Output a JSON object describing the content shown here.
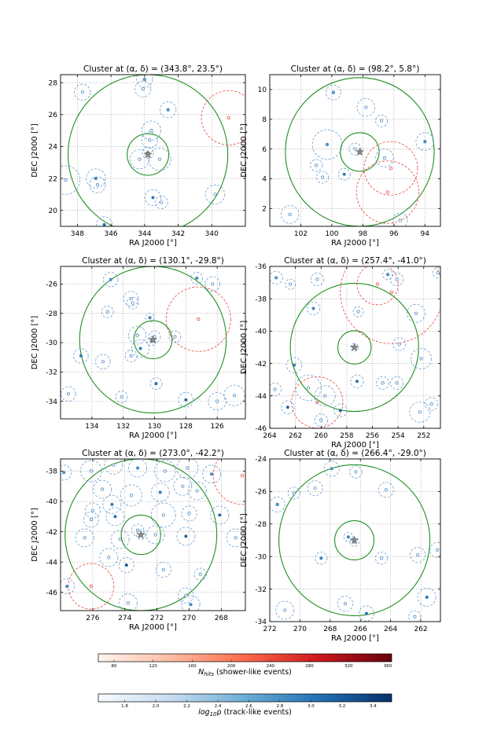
{
  "chart_data": [
    {
      "type": "scatter",
      "title": "Cluster at (α, δ) = (343.8°, 23.5°)",
      "xlabel": "RA J2000 [°]",
      "ylabel": "DEC J2000 [°]",
      "xlim": [
        349,
        338
      ],
      "ylim": [
        19,
        28.5
      ],
      "xticks": [
        "348",
        "346",
        "344",
        "342",
        "340"
      ],
      "yticks": [
        "20",
        "22",
        "24",
        "26",
        "28"
      ],
      "grid": true,
      "center": [
        343.8,
        23.5
      ],
      "green_circles": [
        {
          "x": 343.8,
          "y": 23.5,
          "r": 1.3
        },
        {
          "x": 343.8,
          "y": 23.5,
          "r": 5.0
        }
      ],
      "track_events": [
        {
          "x": 344.0,
          "y": 28.2,
          "r": 0.5
        },
        {
          "x": 344.1,
          "y": 27.6,
          "r": 0.5
        },
        {
          "x": 347.7,
          "y": 27.4,
          "r": 0.5
        },
        {
          "x": 342.6,
          "y": 26.3,
          "r": 0.5
        },
        {
          "x": 343.6,
          "y": 25.0,
          "r": 0.6
        },
        {
          "x": 343.7,
          "y": 24.4,
          "r": 0.5
        },
        {
          "x": 343.8,
          "y": 23.6,
          "r": 0.35
        },
        {
          "x": 344.3,
          "y": 23.2,
          "r": 0.6
        },
        {
          "x": 343.1,
          "y": 23.2,
          "r": 0.7
        },
        {
          "x": 346.9,
          "y": 22.0,
          "r": 0.6
        },
        {
          "x": 346.8,
          "y": 21.6,
          "r": 0.5
        },
        {
          "x": 348.7,
          "y": 21.9,
          "r": 0.9
        },
        {
          "x": 343.5,
          "y": 20.8,
          "r": 0.5
        },
        {
          "x": 343.0,
          "y": 20.5,
          "r": 0.4
        },
        {
          "x": 339.8,
          "y": 21.0,
          "r": 0.6
        },
        {
          "x": 346.4,
          "y": 19.1,
          "r": 0.5
        }
      ],
      "shower_events": [
        {
          "x": 339.0,
          "y": 25.8,
          "r": 1.7
        }
      ]
    },
    {
      "type": "scatter",
      "title": "Cluster at (α, δ) = (98.2°, 5.8°)",
      "xlabel": "RA J2000 [°]",
      "ylabel": "DEC J2000 [°]",
      "xlim": [
        104,
        93
      ],
      "ylim": [
        0.8,
        11
      ],
      "xticks": [
        "102",
        "100",
        "98",
        "96",
        "94"
      ],
      "yticks": [
        "2",
        "4",
        "6",
        "8",
        "10"
      ],
      "grid": true,
      "center": [
        98.2,
        5.8
      ],
      "green_circles": [
        {
          "x": 98.2,
          "y": 5.8,
          "r": 1.3
        },
        {
          "x": 98.2,
          "y": 5.8,
          "r": 5.0
        }
      ],
      "track_events": [
        {
          "x": 99.9,
          "y": 9.8,
          "r": 0.5
        },
        {
          "x": 97.8,
          "y": 8.8,
          "r": 0.6
        },
        {
          "x": 96.8,
          "y": 7.9,
          "r": 0.4
        },
        {
          "x": 100.3,
          "y": 6.3,
          "r": 1.0
        },
        {
          "x": 98.5,
          "y": 6.0,
          "r": 0.4
        },
        {
          "x": 96.6,
          "y": 5.4,
          "r": 0.6
        },
        {
          "x": 94.0,
          "y": 6.5,
          "r": 0.6
        },
        {
          "x": 101.0,
          "y": 4.9,
          "r": 0.4
        },
        {
          "x": 100.6,
          "y": 4.1,
          "r": 0.4
        },
        {
          "x": 99.2,
          "y": 4.3,
          "r": 0.4
        },
        {
          "x": 102.7,
          "y": 1.6,
          "r": 0.6
        },
        {
          "x": 95.6,
          "y": 1.2,
          "r": 0.5
        }
      ],
      "shower_events": [
        {
          "x": 96.2,
          "y": 4.7,
          "r": 1.8
        },
        {
          "x": 96.4,
          "y": 3.1,
          "r": 2.1
        }
      ]
    },
    {
      "type": "scatter",
      "title": "Cluster at (α, δ) = (130.1°, -29.8°)",
      "xlabel": "RA J2000 [°]",
      "ylabel": "DEC J2000 [°]",
      "xlim": [
        136,
        124.2
      ],
      "ylim": [
        -35.2,
        -24.8
      ],
      "xticks": [
        "134",
        "132",
        "130",
        "128",
        "126"
      ],
      "yticks": [
        "-26",
        "-28",
        "-30",
        "-32",
        "-34"
      ],
      "grid": true,
      "center": [
        130.1,
        -29.8
      ],
      "green_circles": [
        {
          "x": 130.1,
          "y": -29.8,
          "r": 1.3
        },
        {
          "x": 130.1,
          "y": -29.8,
          "r": 5.0
        }
      ],
      "track_events": [
        {
          "x": 132.8,
          "y": -25.7,
          "r": 0.5
        },
        {
          "x": 131.5,
          "y": -27.0,
          "r": 0.5
        },
        {
          "x": 131.4,
          "y": -27.3,
          "r": 0.4
        },
        {
          "x": 127.3,
          "y": -25.6,
          "r": 0.4
        },
        {
          "x": 126.3,
          "y": -26.0,
          "r": 0.5
        },
        {
          "x": 133.0,
          "y": -27.9,
          "r": 0.4
        },
        {
          "x": 130.3,
          "y": -28.3,
          "r": 0.3
        },
        {
          "x": 131.1,
          "y": -29.5,
          "r": 0.6
        },
        {
          "x": 130.2,
          "y": -29.9,
          "r": 0.3
        },
        {
          "x": 130.9,
          "y": -30.4,
          "r": 0.6
        },
        {
          "x": 130.0,
          "y": -29.6,
          "r": 0.4
        },
        {
          "x": 128.7,
          "y": -29.6,
          "r": 0.4
        },
        {
          "x": 134.7,
          "y": -30.9,
          "r": 0.5
        },
        {
          "x": 133.3,
          "y": -31.3,
          "r": 0.5
        },
        {
          "x": 131.5,
          "y": -30.9,
          "r": 0.4
        },
        {
          "x": 129.9,
          "y": -32.8,
          "r": 0.4
        },
        {
          "x": 135.5,
          "y": -33.5,
          "r": 0.5
        },
        {
          "x": 132.1,
          "y": -33.7,
          "r": 0.4
        },
        {
          "x": 128.0,
          "y": -33.9,
          "r": 0.5
        },
        {
          "x": 126.0,
          "y": -34.0,
          "r": 0.6
        },
        {
          "x": 124.9,
          "y": -33.6,
          "r": 0.7
        }
      ],
      "shower_events": [
        {
          "x": 127.2,
          "y": -28.4,
          "r": 2.2
        }
      ]
    },
    {
      "type": "scatter",
      "title": "Cluster at (α, δ) = (257.4°, -41.0°)",
      "xlabel": "RA J2000 [°]",
      "ylabel": "DEC J2000 [°]",
      "xlim": [
        264,
        250.7
      ],
      "ylim": [
        -46,
        -36
      ],
      "xticks": [
        "264",
        "262",
        "260",
        "258",
        "256",
        "254",
        "252"
      ],
      "yticks": [
        "-36",
        "-38",
        "-40",
        "-42",
        "-44",
        "-46"
      ],
      "grid": true,
      "center": [
        257.4,
        -41.0
      ],
      "green_circles": [
        {
          "x": 257.4,
          "y": -41.0,
          "r": 1.3
        },
        {
          "x": 257.4,
          "y": -41.0,
          "r": 5.0
        }
      ],
      "track_events": [
        {
          "x": 263.5,
          "y": -36.7,
          "r": 0.5
        },
        {
          "x": 262.4,
          "y": -37.1,
          "r": 0.4
        },
        {
          "x": 260.3,
          "y": -36.8,
          "r": 0.5
        },
        {
          "x": 254.8,
          "y": -36.5,
          "r": 0.4
        },
        {
          "x": 254.1,
          "y": -36.8,
          "r": 0.5
        },
        {
          "x": 250.9,
          "y": -36.4,
          "r": 0.4
        },
        {
          "x": 260.6,
          "y": -38.6,
          "r": 0.5
        },
        {
          "x": 257.1,
          "y": -38.8,
          "r": 0.4
        },
        {
          "x": 252.6,
          "y": -38.9,
          "r": 0.7
        },
        {
          "x": 257.4,
          "y": -41.0,
          "r": 0.3
        },
        {
          "x": 253.9,
          "y": -40.8,
          "r": 0.5
        },
        {
          "x": 252.2,
          "y": -41.7,
          "r": 0.8
        },
        {
          "x": 262.1,
          "y": -42.1,
          "r": 0.6
        },
        {
          "x": 261.0,
          "y": -43.5,
          "r": 1.0
        },
        {
          "x": 259.7,
          "y": -44.0,
          "r": 0.8
        },
        {
          "x": 257.2,
          "y": -43.1,
          "r": 0.5
        },
        {
          "x": 255.2,
          "y": -43.2,
          "r": 0.5
        },
        {
          "x": 254.1,
          "y": -43.2,
          "r": 0.5
        },
        {
          "x": 262.6,
          "y": -44.7,
          "r": 0.5
        },
        {
          "x": 263.6,
          "y": -43.6,
          "r": 0.5
        },
        {
          "x": 260.0,
          "y": -45.5,
          "r": 0.5
        },
        {
          "x": 258.5,
          "y": -44.9,
          "r": 0.5
        },
        {
          "x": 252.3,
          "y": -45.0,
          "r": 0.8
        },
        {
          "x": 251.4,
          "y": -44.5,
          "r": 0.5
        }
      ],
      "shower_events": [
        {
          "x": 255.6,
          "y": -37.1,
          "r": 1.6
        },
        {
          "x": 254.5,
          "y": -37.6,
          "r": 4.0
        },
        {
          "x": 260.3,
          "y": -44.4,
          "r": 2.0
        }
      ]
    },
    {
      "type": "scatter",
      "title": "Cluster at (α, δ) = (273.0°, -42.2°)",
      "xlabel": "RA J2000 [°]",
      "ylabel": "DEC J2000 [°]",
      "xlim": [
        278,
        266.5
      ],
      "ylim": [
        -47.2,
        -37.2
      ],
      "xticks": [
        "276",
        "274",
        "272",
        "270",
        "268"
      ],
      "yticks": [
        "-38",
        "-40",
        "-42",
        "-44",
        "-46"
      ],
      "grid": true,
      "center": [
        273.0,
        -42.2
      ],
      "green_circles": [
        {
          "x": 273.0,
          "y": -42.2,
          "r": 1.3
        },
        {
          "x": 273.0,
          "y": -42.2,
          "r": 5.0
        }
      ],
      "track_events": [
        {
          "x": 277.8,
          "y": -38.1,
          "r": 0.5
        },
        {
          "x": 276.1,
          "y": -38.0,
          "r": 0.7
        },
        {
          "x": 274.7,
          "y": -37.6,
          "r": 0.6
        },
        {
          "x": 273.2,
          "y": -37.8,
          "r": 0.6
        },
        {
          "x": 271.5,
          "y": -38.0,
          "r": 0.7
        },
        {
          "x": 270.1,
          "y": -37.8,
          "r": 0.7
        },
        {
          "x": 268.6,
          "y": -38.2,
          "r": 0.6
        },
        {
          "x": 275.4,
          "y": -39.2,
          "r": 0.6
        },
        {
          "x": 273.6,
          "y": -39.6,
          "r": 0.7
        },
        {
          "x": 271.8,
          "y": -39.4,
          "r": 0.6
        },
        {
          "x": 270.4,
          "y": -39.0,
          "r": 0.6
        },
        {
          "x": 269.5,
          "y": -39.3,
          "r": 0.6
        },
        {
          "x": 274.8,
          "y": -40.2,
          "r": 0.6
        },
        {
          "x": 276.0,
          "y": -40.6,
          "r": 0.5
        },
        {
          "x": 276.1,
          "y": -41.2,
          "r": 0.5
        },
        {
          "x": 274.6,
          "y": -41.0,
          "r": 0.6
        },
        {
          "x": 271.6,
          "y": -40.9,
          "r": 0.8
        },
        {
          "x": 270.0,
          "y": -40.8,
          "r": 0.5
        },
        {
          "x": 268.1,
          "y": -40.9,
          "r": 0.6
        },
        {
          "x": 276.5,
          "y": -42.4,
          "r": 0.6
        },
        {
          "x": 274.3,
          "y": -42.5,
          "r": 0.6
        },
        {
          "x": 273.0,
          "y": -42.2,
          "r": 0.3
        },
        {
          "x": 273.2,
          "y": -41.9,
          "r": 0.4
        },
        {
          "x": 272.1,
          "y": -42.2,
          "r": 0.6
        },
        {
          "x": 270.2,
          "y": -42.3,
          "r": 0.6
        },
        {
          "x": 267.1,
          "y": -42.4,
          "r": 0.6
        },
        {
          "x": 275.0,
          "y": -43.7,
          "r": 0.6
        },
        {
          "x": 273.9,
          "y": -44.2,
          "r": 0.5
        },
        {
          "x": 271.6,
          "y": -44.5,
          "r": 0.5
        },
        {
          "x": 269.3,
          "y": -44.8,
          "r": 0.4
        },
        {
          "x": 277.6,
          "y": -45.6,
          "r": 0.5
        },
        {
          "x": 273.8,
          "y": -46.7,
          "r": 0.6
        },
        {
          "x": 270.2,
          "y": -46.2,
          "r": 0.5
        },
        {
          "x": 269.9,
          "y": -46.8,
          "r": 0.6
        }
      ],
      "shower_events": [
        {
          "x": 266.7,
          "y": -38.3,
          "r": 1.9
        },
        {
          "x": 276.1,
          "y": -45.6,
          "r": 1.5
        }
      ]
    },
    {
      "type": "scatter",
      "title": "Cluster at (α, δ) = (266.4°, -29.0°)",
      "xlabel": "RA J2000 [°]",
      "ylabel": "DEC J2000 [°]",
      "xlim": [
        272,
        260.7
      ],
      "ylim": [
        -34,
        -24
      ],
      "xticks": [
        "272",
        "270",
        "268",
        "266",
        "264",
        "262"
      ],
      "yticks": [
        "-24",
        "-26",
        "-28",
        "-30",
        "-32",
        "-34"
      ],
      "grid": true,
      "center": [
        266.4,
        -29.0
      ],
      "green_circles": [
        {
          "x": 266.4,
          "y": -29.0,
          "r": 1.3
        },
        {
          "x": 266.4,
          "y": -29.0,
          "r": 5.0
        }
      ],
      "track_events": [
        {
          "x": 267.9,
          "y": -24.6,
          "r": 0.5
        },
        {
          "x": 266.3,
          "y": -24.8,
          "r": 0.4
        },
        {
          "x": 264.3,
          "y": -25.9,
          "r": 0.5
        },
        {
          "x": 271.5,
          "y": -26.8,
          "r": 0.5
        },
        {
          "x": 270.4,
          "y": -26.1,
          "r": 0.4
        },
        {
          "x": 269.0,
          "y": -25.8,
          "r": 0.5
        },
        {
          "x": 266.8,
          "y": -28.8,
          "r": 0.3
        },
        {
          "x": 266.4,
          "y": -29.1,
          "r": 0.3
        },
        {
          "x": 264.6,
          "y": -30.1,
          "r": 0.4
        },
        {
          "x": 268.6,
          "y": -30.1,
          "r": 0.4
        },
        {
          "x": 262.2,
          "y": -29.9,
          "r": 0.5
        },
        {
          "x": 260.9,
          "y": -29.6,
          "r": 0.5
        },
        {
          "x": 261.6,
          "y": -32.5,
          "r": 0.6
        },
        {
          "x": 271.0,
          "y": -33.3,
          "r": 0.6
        },
        {
          "x": 267.0,
          "y": -32.9,
          "r": 0.5
        },
        {
          "x": 265.6,
          "y": -33.5,
          "r": 0.5
        },
        {
          "x": 262.4,
          "y": -33.7,
          "r": 0.4
        }
      ],
      "shower_events": []
    }
  ],
  "colorbars": [
    {
      "label": "N_hits (shower-like events)",
      "label_main": "N",
      "label_sub": "hits",
      "label_rest": " (shower-like events)",
      "ticks": [
        "80",
        "120",
        "160",
        "200",
        "240",
        "280",
        "320",
        "360"
      ],
      "range": [
        64,
        364
      ],
      "colors": [
        "#fff5f0",
        "#fcbba1",
        "#fb6a4a",
        "#cb181d",
        "#67000d"
      ]
    },
    {
      "label": "log10ρ (track-like events)",
      "label_main": "log",
      "label_sub": "10",
      "label_rest": "ρ (track-like events)",
      "ticks": [
        "1.8",
        "2.0",
        "2.2",
        "2.4",
        "2.6",
        "2.8",
        "3.0",
        "3.2",
        "3.4"
      ],
      "range": [
        1.63,
        3.52
      ],
      "colors": [
        "#f7fbff",
        "#c6dbef",
        "#6baed6",
        "#2171b5",
        "#08306b"
      ]
    }
  ]
}
